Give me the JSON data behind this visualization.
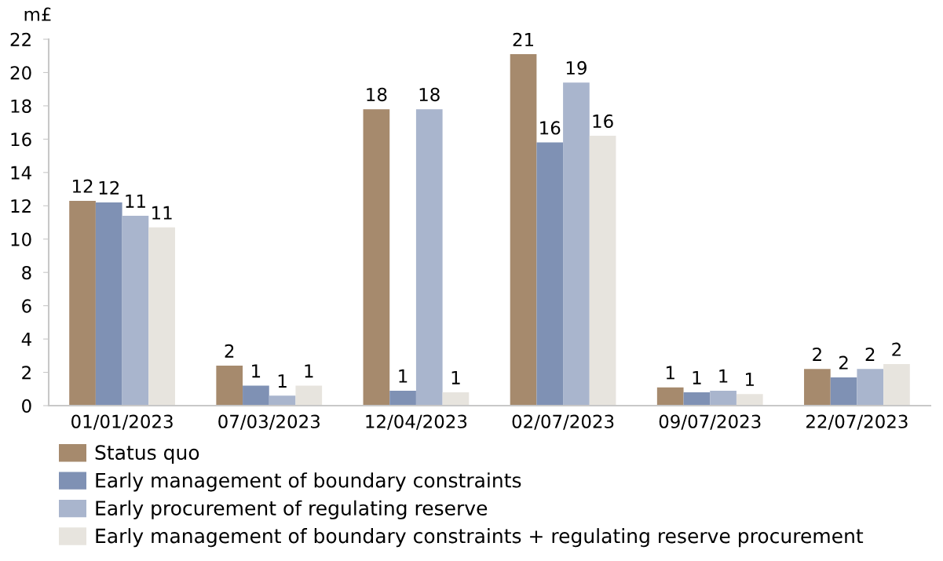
{
  "chart_data": {
    "type": "bar",
    "ylabel": "m£",
    "categories": [
      "01/01/2023",
      "07/03/2023",
      "12/04/2023",
      "02/07/2023",
      "09/07/2023",
      "22/07/2023"
    ],
    "series": [
      {
        "name": "Status quo",
        "color": "#a68a6d",
        "values": [
          12.3,
          2.4,
          17.8,
          21.1,
          1.1,
          2.2
        ],
        "value_labels": [
          "12",
          "2",
          "18",
          "21",
          "1",
          "2"
        ]
      },
      {
        "name": "Early management of boundary constraints",
        "color": "#7f91b4",
        "values": [
          12.2,
          1.2,
          0.9,
          15.8,
          0.8,
          1.7
        ],
        "value_labels": [
          "12",
          "1",
          "1",
          "16",
          "1",
          "2"
        ]
      },
      {
        "name": "Early procurement of regulating reserve",
        "color": "#a9b5cd",
        "values": [
          11.4,
          0.6,
          17.8,
          19.4,
          0.9,
          2.2
        ],
        "value_labels": [
          "11",
          "1",
          "18",
          "19",
          "1",
          "2"
        ]
      },
      {
        "name": "Early management of boundary constraints + regulating reserve procurement",
        "color": "#e7e4de",
        "values": [
          10.7,
          1.2,
          0.8,
          16.2,
          0.7,
          2.5
        ],
        "value_labels": [
          "11",
          "1",
          "1",
          "16",
          "1",
          "2"
        ]
      }
    ],
    "ylim": [
      0,
      22
    ],
    "yticks": [
      0,
      2,
      4,
      6,
      8,
      10,
      12,
      14,
      16,
      18,
      20,
      22
    ],
    "legend": "bottom"
  }
}
